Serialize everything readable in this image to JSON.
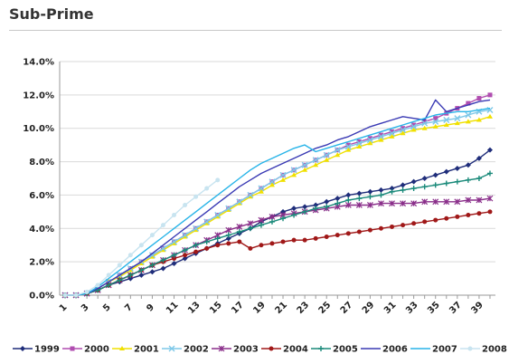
{
  "header": {
    "title": "Sub-Prime"
  },
  "chart_data": {
    "type": "line",
    "title": "",
    "xlabel": "",
    "ylabel": "",
    "ylim": [
      0,
      0.14
    ],
    "y_tick_labels": [
      "0.0%",
      "2.0%",
      "4.0%",
      "6.0%",
      "8.0%",
      "10.0%",
      "12.0%",
      "14.0%"
    ],
    "x_tick_labels": [
      "1",
      "3",
      "5",
      "7",
      "9",
      "11",
      "13",
      "15",
      "17",
      "19",
      "21",
      "23",
      "25",
      "27",
      "29",
      "31",
      "33",
      "35",
      "37",
      "39"
    ],
    "legend_position": "bottom",
    "grid": "horizontal",
    "x": [
      1,
      2,
      3,
      4,
      5,
      6,
      7,
      8,
      9,
      10,
      11,
      12,
      13,
      14,
      15,
      16,
      17,
      18,
      19,
      20,
      21,
      22,
      23,
      24,
      25,
      26,
      27,
      28,
      29,
      30,
      31,
      32,
      33,
      34,
      35,
      36,
      37,
      38,
      39,
      40
    ],
    "series": [
      {
        "name": "1999",
        "color": "#1f2d7a",
        "marker": "diamond",
        "values": [
          0,
          0,
          0.001,
          0.003,
          0.006,
          0.008,
          0.01,
          0.012,
          0.014,
          0.016,
          0.019,
          0.022,
          0.025,
          0.028,
          0.031,
          0.034,
          0.037,
          0.04,
          0.044,
          0.047,
          0.05,
          0.052,
          0.053,
          0.054,
          0.056,
          0.058,
          0.06,
          0.061,
          0.062,
          0.063,
          0.064,
          0.066,
          0.068,
          0.07,
          0.072,
          0.074,
          0.076,
          0.078,
          0.082,
          0.087
        ]
      },
      {
        "name": "2000",
        "color": "#b04db0",
        "marker": "square",
        "values": [
          0,
          0,
          0.001,
          0.004,
          0.008,
          0.012,
          0.016,
          0.02,
          0.024,
          0.028,
          0.032,
          0.036,
          0.04,
          0.044,
          0.048,
          0.052,
          0.056,
          0.06,
          0.064,
          0.068,
          0.072,
          0.075,
          0.078,
          0.081,
          0.084,
          0.087,
          0.09,
          0.092,
          0.094,
          0.096,
          0.098,
          0.1,
          0.102,
          0.104,
          0.106,
          0.109,
          0.112,
          0.115,
          0.118,
          0.12
        ]
      },
      {
        "name": "2001",
        "color": "#f0e000",
        "marker": "triangle",
        "values": [
          0,
          0,
          0.001,
          0.004,
          0.008,
          0.011,
          0.015,
          0.019,
          0.023,
          0.027,
          0.031,
          0.035,
          0.039,
          0.043,
          0.047,
          0.051,
          0.055,
          0.059,
          0.062,
          0.066,
          0.069,
          0.072,
          0.075,
          0.078,
          0.081,
          0.084,
          0.087,
          0.089,
          0.091,
          0.093,
          0.095,
          0.097,
          0.099,
          0.1,
          0.101,
          0.102,
          0.103,
          0.104,
          0.105,
          0.107
        ]
      },
      {
        "name": "2002",
        "color": "#7ec8e8",
        "marker": "x",
        "values": [
          0,
          0,
          0.001,
          0.004,
          0.008,
          0.012,
          0.016,
          0.02,
          0.024,
          0.028,
          0.032,
          0.036,
          0.04,
          0.044,
          0.048,
          0.052,
          0.056,
          0.06,
          0.064,
          0.068,
          0.072,
          0.075,
          0.078,
          0.081,
          0.084,
          0.087,
          0.089,
          0.091,
          0.093,
          0.095,
          0.097,
          0.099,
          0.101,
          0.103,
          0.104,
          0.105,
          0.106,
          0.108,
          0.11,
          0.111
        ]
      },
      {
        "name": "2003",
        "color": "#8a2f8a",
        "marker": "asterisk",
        "values": [
          0,
          0,
          0.001,
          0.003,
          0.006,
          0.009,
          0.012,
          0.015,
          0.018,
          0.021,
          0.024,
          0.027,
          0.03,
          0.033,
          0.036,
          0.039,
          0.041,
          0.043,
          0.045,
          0.047,
          0.048,
          0.049,
          0.05,
          0.051,
          0.052,
          0.053,
          0.054,
          0.054,
          0.054,
          0.055,
          0.055,
          0.055,
          0.055,
          0.056,
          0.056,
          0.056,
          0.056,
          0.057,
          0.057,
          0.058
        ]
      },
      {
        "name": "2004",
        "color": "#a01818",
        "marker": "circle",
        "values": [
          0,
          0,
          0.001,
          0.003,
          0.006,
          0.009,
          0.012,
          0.015,
          0.018,
          0.02,
          0.022,
          0.024,
          0.026,
          0.028,
          0.03,
          0.031,
          0.032,
          0.028,
          0.03,
          0.031,
          0.032,
          0.033,
          0.033,
          0.034,
          0.035,
          0.036,
          0.037,
          0.038,
          0.039,
          0.04,
          0.041,
          0.042,
          0.043,
          0.044,
          0.045,
          0.046,
          0.047,
          0.048,
          0.049,
          0.05
        ]
      },
      {
        "name": "2005",
        "color": "#1a8a7a",
        "marker": "plus",
        "values": [
          0,
          0,
          0.001,
          0.003,
          0.006,
          0.009,
          0.012,
          0.015,
          0.018,
          0.021,
          0.024,
          0.027,
          0.03,
          0.032,
          0.034,
          0.036,
          0.038,
          0.04,
          0.042,
          0.044,
          0.046,
          0.048,
          0.05,
          0.052,
          0.053,
          0.055,
          0.057,
          0.058,
          0.059,
          0.06,
          0.062,
          0.063,
          0.064,
          0.065,
          0.066,
          0.067,
          0.068,
          0.069,
          0.07,
          0.073
        ]
      },
      {
        "name": "2006",
        "color": "#3a3ab4",
        "marker": "none",
        "values": [
          0,
          0,
          0.001,
          0.004,
          0.008,
          0.012,
          0.016,
          0.02,
          0.025,
          0.03,
          0.035,
          0.04,
          0.045,
          0.05,
          0.055,
          0.06,
          0.065,
          0.069,
          0.073,
          0.076,
          0.079,
          0.082,
          0.085,
          0.088,
          0.09,
          0.093,
          0.095,
          0.098,
          0.101,
          0.103,
          0.105,
          0.107,
          0.106,
          0.105,
          0.117,
          0.11,
          0.112,
          0.114,
          0.116,
          0.117
        ]
      },
      {
        "name": "2007",
        "color": "#28b4e8",
        "marker": "none",
        "values": [
          0,
          0,
          0.001,
          0.005,
          0.01,
          0.015,
          0.02,
          0.025,
          0.03,
          0.035,
          0.04,
          0.045,
          0.05,
          0.055,
          0.06,
          0.065,
          0.07,
          0.075,
          0.079,
          0.082,
          0.085,
          0.088,
          0.09,
          0.086,
          0.088,
          0.09,
          0.092,
          0.094,
          0.096,
          0.098,
          0.1,
          0.102,
          0.104,
          0.106,
          0.108,
          0.109,
          0.11,
          0.11,
          0.111,
          0.112
        ]
      },
      {
        "name": "2008",
        "color": "#c8e4f0",
        "marker": "circle",
        "values": [
          0,
          0,
          0.002,
          0.006,
          0.012,
          0.018,
          0.024,
          0.03,
          0.036,
          0.042,
          0.048,
          0.054,
          0.059,
          0.064,
          0.069,
          null,
          null,
          null,
          null,
          null,
          null,
          null,
          null,
          null,
          null,
          null,
          null,
          null,
          null,
          null,
          null,
          null,
          null,
          null,
          null,
          null,
          null,
          null,
          null,
          null
        ]
      }
    ]
  }
}
